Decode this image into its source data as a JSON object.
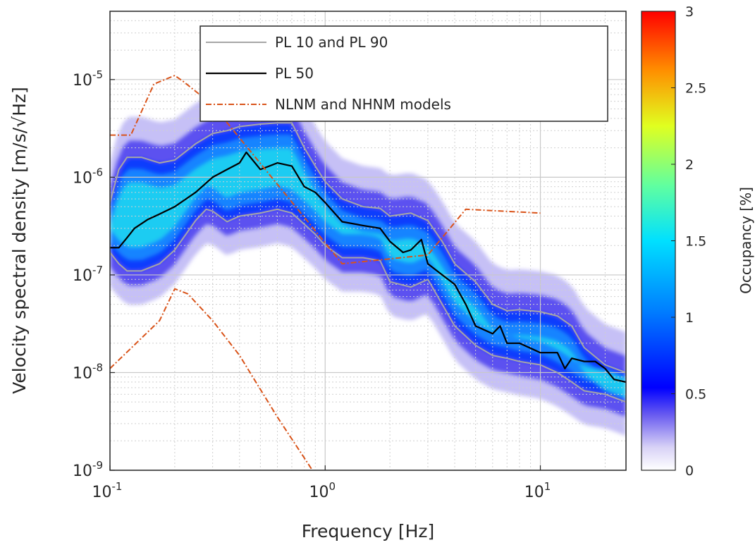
{
  "chart_data": {
    "type": "heatmap",
    "title": "",
    "xlabel": "Frequency [Hz]",
    "ylabel": "Velocity spectral density [m/s/√Hz]",
    "xscale": "log",
    "yscale": "log",
    "xlim": [
      0.1,
      25
    ],
    "ylim": [
      1e-09,
      5e-05
    ],
    "x_ticks": [
      {
        "value": 0.1,
        "base": "10",
        "exp": "-1"
      },
      {
        "value": 1,
        "base": "10",
        "exp": "0"
      },
      {
        "value": 10,
        "base": "10",
        "exp": "1"
      }
    ],
    "y_ticks": [
      {
        "value": 1e-09,
        "base": "10",
        "exp": "-9"
      },
      {
        "value": 1e-08,
        "base": "10",
        "exp": "-8"
      },
      {
        "value": 1e-07,
        "base": "10",
        "exp": "-7"
      },
      {
        "value": 1e-06,
        "base": "10",
        "exp": "-6"
      },
      {
        "value": 1e-05,
        "base": "10",
        "exp": "-5"
      }
    ],
    "grid": true,
    "legend_position": "top-center",
    "colorbar": {
      "label": "Occupancy [%]",
      "range": [
        0,
        3
      ],
      "ticks": [
        "0",
        "0.5",
        "1",
        "1.5",
        "2",
        "2.5",
        "3"
      ],
      "colormap": "jet"
    },
    "series": [
      {
        "name": "PL 10 and PL 90",
        "color": "#a6a6a6",
        "style": "solid",
        "lines": [
          {
            "x": [
              0.1,
              0.11,
              0.12,
              0.14,
              0.17,
              0.2,
              0.25,
              0.3,
              0.35,
              0.4,
              0.5,
              0.6,
              0.7,
              0.8,
              0.9,
              1.0,
              1.2,
              1.5,
              1.8,
              2.0,
              2.5,
              3.0,
              3.5,
              4.0,
              5.0,
              6.0,
              7.0,
              8.0,
              10.0,
              12.0,
              14.0,
              16.0,
              20.0,
              25.0
            ],
            "y": [
              5.5e-07,
              1.2e-06,
              1.6e-06,
              1.6e-06,
              1.4e-06,
              1.5e-06,
              2.2e-06,
              2.8e-06,
              3e-06,
              3.3e-06,
              3.5e-06,
              3.6e-06,
              3.6e-06,
              2e-06,
              1.3e-06,
              9e-07,
              6e-07,
              5e-07,
              4.8e-07,
              4e-07,
              4.3e-07,
              3.6e-07,
              2.2e-07,
              1.3e-07,
              8.5e-08,
              5e-08,
              4.3e-08,
              4.4e-08,
              4.2e-08,
              3.8e-08,
              3e-08,
              1.8e-08,
              1.2e-08,
              1e-08
            ]
          },
          {
            "x": [
              0.1,
              0.11,
              0.12,
              0.14,
              0.17,
              0.2,
              0.25,
              0.28,
              0.3,
              0.35,
              0.4,
              0.5,
              0.6,
              0.7,
              0.8,
              0.9,
              1.0,
              1.2,
              1.5,
              1.8,
              2.0,
              2.5,
              3.0,
              3.5,
              4.0,
              5.0,
              6.0,
              7.0,
              8.0,
              10.0,
              12.0,
              14.0,
              16.0,
              20.0,
              25.0
            ],
            "y": [
              1.7e-07,
              1.3e-07,
              1.1e-07,
              1.1e-07,
              1.3e-07,
              1.8e-07,
              3.6e-07,
              4.7e-07,
              4.5e-07,
              3.5e-07,
              4e-07,
              4.3e-07,
              4.7e-07,
              4.3e-07,
              3.3e-07,
              2.6e-07,
              2e-07,
              1.5e-07,
              1.5e-07,
              1.4e-07,
              8.5e-08,
              7.5e-08,
              9e-08,
              5e-08,
              3e-08,
              1.9e-08,
              1.5e-08,
              1.4e-08,
              1.3e-08,
              1.2e-08,
              1e-08,
              8e-09,
              6.5e-09,
              6e-09,
              5e-09
            ]
          }
        ]
      },
      {
        "name": "PL 50",
        "color": "#000000",
        "style": "solid",
        "x": [
          0.1,
          0.11,
          0.12,
          0.13,
          0.15,
          0.17,
          0.2,
          0.25,
          0.3,
          0.35,
          0.4,
          0.43,
          0.5,
          0.6,
          0.7,
          0.8,
          0.9,
          1.0,
          1.2,
          1.5,
          1.8,
          2.0,
          2.3,
          2.5,
          2.8,
          3.0,
          3.5,
          4.0,
          4.5,
          5.0,
          6.0,
          6.5,
          7.0,
          8.0,
          10.0,
          12.0,
          13.0,
          14.0,
          16.0,
          18.0,
          20.0,
          22.0,
          25.0
        ],
        "y": [
          1.9e-07,
          1.9e-07,
          2.4e-07,
          3e-07,
          3.7e-07,
          4.2e-07,
          5e-07,
          7e-07,
          1e-06,
          1.2e-06,
          1.4e-06,
          1.8e-06,
          1.2e-06,
          1.4e-06,
          1.3e-06,
          8e-07,
          7e-07,
          5.5e-07,
          3.5e-07,
          3.2e-07,
          3e-07,
          2.2e-07,
          1.7e-07,
          1.8e-07,
          2.3e-07,
          1.3e-07,
          1e-07,
          8e-08,
          5e-08,
          3e-08,
          2.5e-08,
          3e-08,
          2e-08,
          2e-08,
          1.6e-08,
          1.6e-08,
          1.1e-08,
          1.4e-08,
          1.3e-08,
          1.3e-08,
          1.1e-08,
          8.5e-09,
          8e-09
        ]
      },
      {
        "name": "NLNM and NHNM models",
        "color": "#d95319",
        "style": "dashed",
        "lines": [
          {
            "x": [
              0.1,
              0.125,
              0.16,
              0.2,
              0.22,
              0.3,
              1.2,
              3.0,
              4.5,
              10.0
            ],
            "y": [
              2.7e-06,
              2.7e-06,
              9e-06,
              1.1e-05,
              9.5e-06,
              5.5e-06,
              1.3e-07,
              1.6e-07,
              4.7e-07,
              4.3e-07
            ]
          },
          {
            "x": [
              0.1,
              0.17,
              0.2,
              0.23,
              0.3,
              0.4,
              0.6,
              0.9
            ],
            "y": [
              1.1e-08,
              3.4e-08,
              7.2e-08,
              6.4e-08,
              3.4e-08,
              1.5e-08,
              3.5e-09,
              9e-10
            ]
          }
        ]
      }
    ]
  }
}
